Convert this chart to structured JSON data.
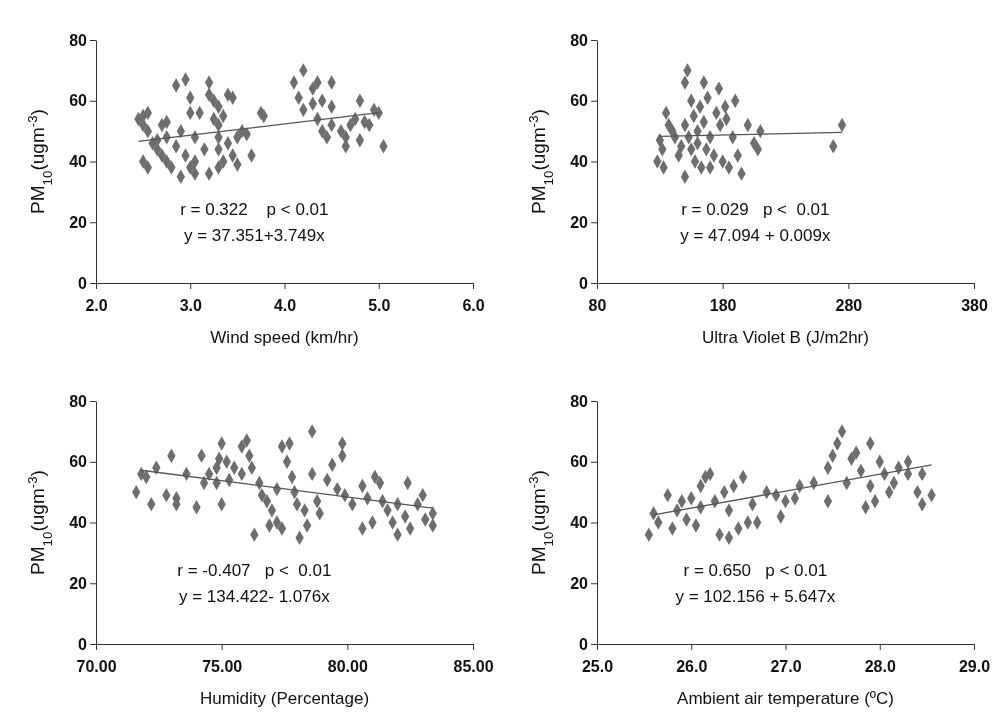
{
  "chart_data": [
    {
      "type": "scatter",
      "xlabel": "Wind speed (km/hr)",
      "ylabel": "PM$_{10}$(ugm$^{-3}$)",
      "xlim": [
        2.0,
        6.0
      ],
      "xticks": [
        {
          "value": 2,
          "label": "2.0"
        },
        {
          "value": 3,
          "label": "3.0"
        },
        {
          "value": 4,
          "label": "4.0"
        },
        {
          "value": 5,
          "label": "5.0"
        },
        {
          "value": 6,
          "label": "6.0"
        }
      ],
      "ylim": [
        0,
        80
      ],
      "yticks": [
        0,
        20,
        40,
        60,
        80
      ],
      "annotations": [
        "r = 0.322    p < 0.01",
        "y = 37.351+3.749x"
      ],
      "series": [
        {
          "color": "#6e6e6e",
          "marker": "diamond",
          "x": [
            2.45,
            2.5,
            2.55,
            2.5,
            2.55,
            2.5,
            2.55,
            2.6,
            2.65,
            2.65,
            2.7,
            2.75,
            2.75,
            2.7,
            2.75,
            2.8,
            2.85,
            2.85,
            2.9,
            2.9,
            2.95,
            2.95,
            3.0,
            3.0,
            3.0,
            3.05,
            3.05,
            3.1,
            3.05,
            3.15,
            3.2,
            3.2,
            3.2,
            3.25,
            3.25,
            3.3,
            3.3,
            3.3,
            3.3,
            3.35,
            3.35,
            3.3,
            3.4,
            3.4,
            3.45,
            3.45,
            3.5,
            3.5,
            3.55,
            3.6,
            3.65,
            3.75,
            3.78,
            4.2,
            4.1,
            4.15,
            4.2,
            4.3,
            4.3,
            4.35,
            4.35,
            4.4,
            4.4,
            4.45,
            4.5,
            4.5,
            4.5,
            4.6,
            4.65,
            4.65,
            4.7,
            4.75,
            4.8,
            4.8,
            4.85,
            4.9,
            4.95,
            5.0,
            5.05
          ],
          "values": [
            54,
            55,
            56,
            52,
            50,
            40,
            38,
            46,
            44,
            47,
            52,
            53,
            48,
            42,
            40,
            38,
            45,
            65,
            35,
            50,
            67,
            42,
            61,
            56,
            38,
            48,
            40,
            56,
            36,
            44,
            66,
            62,
            36,
            60,
            54,
            58,
            52,
            48,
            44,
            40,
            55,
            38,
            62,
            46,
            42,
            61,
            48,
            39,
            50,
            49,
            42,
            56,
            55,
            70,
            66,
            61,
            57,
            64,
            59,
            66,
            54,
            60,
            50,
            48,
            58,
            52,
            66,
            50,
            48,
            45,
            52,
            54,
            47,
            60,
            53,
            52,
            57,
            56,
            45
          ]
        },
        {
          "type": "line",
          "color": "#555555",
          "x": [
            2.45,
            5.0
          ],
          "values": [
            46.6,
            56.1
          ]
        }
      ]
    },
    {
      "type": "scatter",
      "xlabel": "Ultra Violet B (J/m2hr)",
      "ylabel": "PM$_{10}$(ugm$^{-3}$)",
      "xlim": [
        80,
        380
      ],
      "xticks": [
        80,
        180,
        280,
        380
      ],
      "ylim": [
        0,
        80
      ],
      "yticks": [
        0,
        20,
        40,
        60,
        80
      ],
      "annotations": [
        "r = 0.029   p <  0.01",
        "y = 47.094 + 0.009x"
      ],
      "series": [
        {
          "color": "#6e6e6e",
          "marker": "diamond",
          "x": [
            128,
            130,
            132,
            133,
            135,
            137,
            140,
            142,
            145,
            147,
            150,
            150,
            150,
            152,
            153,
            155,
            155,
            157,
            158,
            160,
            160,
            162,
            163,
            165,
            165,
            167,
            168,
            170,
            170,
            173,
            175,
            177,
            178,
            180,
            182,
            183,
            185,
            188,
            190,
            192,
            195,
            200,
            205,
            208,
            210,
            268,
            275
          ],
          "values": [
            40,
            47,
            44,
            38,
            56,
            52,
            50,
            48,
            42,
            45,
            35,
            66,
            52,
            70,
            48,
            60,
            44,
            55,
            40,
            50,
            46,
            58,
            38,
            66,
            53,
            44,
            61,
            48,
            38,
            42,
            56,
            64,
            52,
            40,
            58,
            54,
            38,
            48,
            60,
            42,
            36,
            52,
            46,
            44,
            50,
            45,
            52
          ]
        },
        {
          "type": "line",
          "color": "#555555",
          "x": [
            130,
            275
          ],
          "values": [
            48.3,
            49.6
          ]
        }
      ]
    },
    {
      "type": "scatter",
      "xlabel": "Humidity (Percentage)",
      "ylabel": "PM$_{10}$(ugm$^{-3}$)",
      "xlim": [
        70,
        85
      ],
      "xticks": [
        {
          "value": 70,
          "label": "70.00"
        },
        {
          "value": 75,
          "label": "75.00"
        },
        {
          "value": 80,
          "label": "80.00"
        },
        {
          "value": 85,
          "label": "85.00"
        }
      ],
      "ylim": [
        0,
        80
      ],
      "yticks": [
        0,
        20,
        40,
        60,
        80
      ],
      "annotations": [
        "r = -0.407   p <  0.01",
        "y = 134.422- 1.076x"
      ],
      "series": [
        {
          "color": "#6e6e6e",
          "marker": "diamond",
          "x": [
            71.6,
            71.8,
            72.0,
            72.2,
            72.4,
            72.8,
            73.0,
            73.2,
            73.2,
            73.6,
            74.0,
            74.2,
            74.3,
            74.5,
            74.8,
            74.8,
            74.9,
            75.0,
            75.0,
            75.2,
            75.3,
            75.5,
            75.8,
            75.8,
            76.0,
            76.1,
            76.2,
            76.3,
            76.5,
            76.6,
            76.8,
            76.9,
            77.0,
            77.2,
            77.2,
            77.4,
            77.4,
            77.6,
            77.7,
            77.8,
            77.9,
            78.0,
            78.1,
            78.3,
            78.4,
            78.6,
            78.6,
            78.8,
            78.9,
            79.2,
            79.4,
            79.6,
            79.8,
            79.8,
            79.9,
            80.2,
            80.6,
            80.6,
            80.8,
            81.0,
            81.1,
            81.3,
            81.4,
            81.6,
            81.8,
            82.0,
            82.0,
            82.3,
            82.4,
            82.5,
            82.8,
            83.0,
            83.1,
            83.4,
            83.4
          ],
          "values": [
            50,
            56,
            55,
            46,
            58,
            49,
            62,
            48,
            46,
            56,
            45,
            62,
            53,
            56,
            58,
            53,
            61,
            66,
            46,
            60,
            54,
            58,
            56,
            65,
            67,
            62,
            58,
            36,
            53,
            49,
            47,
            39,
            44,
            51,
            40,
            65,
            38,
            60,
            66,
            55,
            50,
            46,
            35,
            44,
            39,
            70,
            56,
            47,
            43,
            54,
            59,
            51,
            66,
            62,
            49,
            46,
            38,
            52,
            48,
            40,
            55,
            53,
            47,
            44,
            40,
            36,
            46,
            42,
            53,
            38,
            46,
            49,
            41,
            43,
            39
          ]
        },
        {
          "type": "line",
          "color": "#555555",
          "x": [
            71.8,
            83.4
          ],
          "values": [
            57.2,
            44.7
          ]
        }
      ]
    },
    {
      "type": "scatter",
      "xlabel": "Ambient air temperature (ºC)",
      "ylabel": "PM$_{10}$(ugm$^{-3}$)",
      "xlim": [
        25,
        29
      ],
      "xticks": [
        {
          "value": 25,
          "label": "25.0"
        },
        {
          "value": 26,
          "label": "26.0"
        },
        {
          "value": 27,
          "label": "27.0"
        },
        {
          "value": 28,
          "label": "28.0"
        },
        {
          "value": 29,
          "label": "29.0"
        }
      ],
      "ylim": [
        0,
        80
      ],
      "yticks": [
        0,
        20,
        40,
        60,
        80
      ],
      "annotations": [
        "r = 0.650   p < 0.01",
        "y = 102.156 + 5.647x"
      ],
      "series": [
        {
          "color": "#6e6e6e",
          "marker": "diamond",
          "x": [
            25.55,
            25.6,
            25.65,
            25.75,
            25.8,
            25.85,
            25.9,
            25.95,
            26.0,
            26.05,
            26.1,
            26.1,
            26.15,
            26.2,
            26.25,
            26.3,
            26.35,
            26.4,
            26.4,
            26.45,
            26.5,
            26.55,
            26.6,
            26.65,
            26.7,
            26.8,
            26.9,
            26.95,
            27.0,
            27.1,
            27.15,
            27.3,
            27.45,
            27.45,
            27.5,
            27.55,
            27.6,
            27.65,
            27.7,
            27.75,
            27.8,
            27.85,
            27.9,
            27.9,
            27.95,
            28.0,
            28.05,
            28.1,
            28.15,
            28.2,
            28.3,
            28.3,
            28.4,
            28.45,
            28.45,
            28.55
          ],
          "values": [
            36,
            43,
            40,
            49,
            38,
            44,
            47,
            41,
            48,
            39,
            45,
            52,
            55,
            56,
            47,
            36,
            50,
            35,
            44,
            52,
            38,
            55,
            40,
            46,
            40,
            50,
            49,
            42,
            47,
            48,
            52,
            53,
            47,
            58,
            62,
            66,
            70,
            53,
            61,
            63,
            57,
            45,
            66,
            52,
            47,
            60,
            56,
            50,
            53,
            58,
            60,
            56,
            50,
            56,
            46,
            49
          ]
        },
        {
          "type": "line",
          "color": "#555555",
          "x": [
            25.6,
            28.55
          ],
          "values": [
            42.5,
            59
          ]
        }
      ]
    }
  ]
}
